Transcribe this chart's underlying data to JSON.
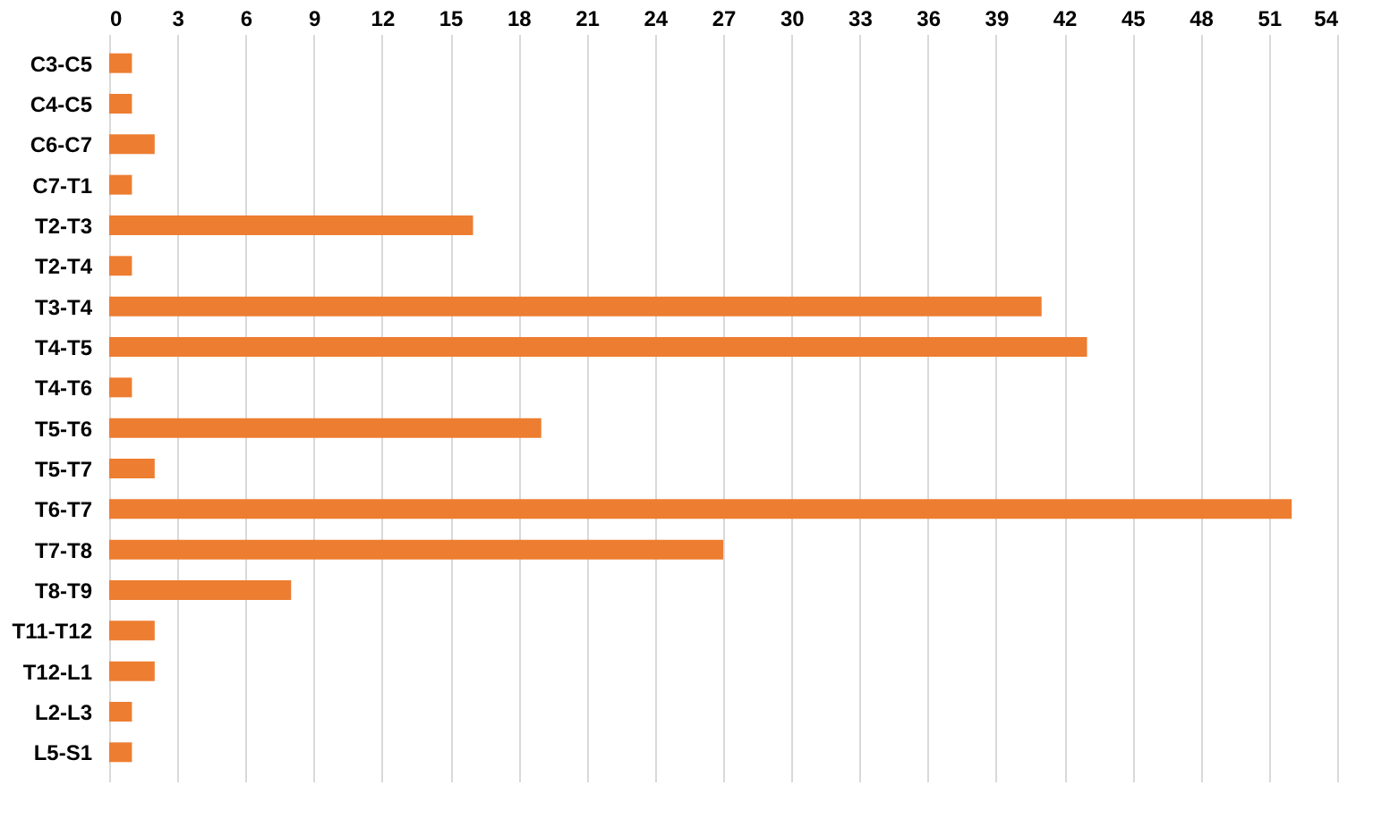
{
  "chart_data": {
    "type": "bar",
    "orientation": "horizontal",
    "categories": [
      "C3-C5",
      "C4-C5",
      "C6-C7",
      "C7-T1",
      "T2-T3",
      "T2-T4",
      "T3-T4",
      "T4-T5",
      "T4-T6",
      "T5-T6",
      "T5-T7",
      "T6-T7",
      "T7-T8",
      "T8-T9",
      "T11-T12",
      "T12-L1",
      "L2-L3",
      "L5-S1"
    ],
    "values": [
      1,
      1,
      2,
      1,
      16,
      1,
      41,
      43,
      1,
      19,
      2,
      52,
      27,
      8,
      2,
      2,
      1,
      1
    ],
    "color": "#ed7d31",
    "xlim": [
      0,
      54
    ],
    "xticks": [
      0,
      3,
      6,
      9,
      12,
      15,
      18,
      21,
      24,
      27,
      30,
      33,
      36,
      39,
      42,
      45,
      48,
      51,
      54
    ],
    "grid": "x"
  }
}
